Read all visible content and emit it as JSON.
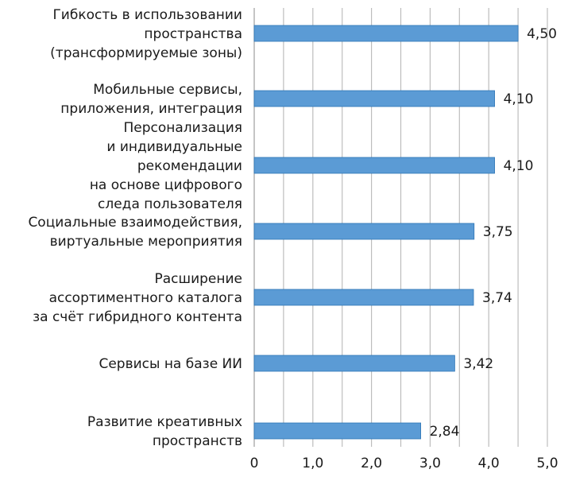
{
  "chart_data": {
    "type": "bar",
    "orientation": "horizontal",
    "title": "",
    "xlabel": "",
    "ylabel": "",
    "categories": [
      [
        "Гибкость в использовании",
        "пространства",
        "(трансформируемые зоны)"
      ],
      [
        "Мобильные сервисы,",
        "приложения, интеграция"
      ],
      [
        "Персонализация",
        "и индивидуальные",
        "рекомендации",
        "на основе цифрового",
        "следа пользователя"
      ],
      [
        "Социальные взаимодействия,",
        "виртуальные мероприятия"
      ],
      [
        "Расширение",
        "ассортиментного каталога",
        "за счёт гибридного контента"
      ],
      [
        "Сервисы на базе ИИ"
      ],
      [
        "Развитие креативных",
        "пространств"
      ]
    ],
    "values": [
      4.5,
      4.1,
      4.1,
      3.75,
      3.74,
      3.42,
      2.84
    ],
    "value_labels": [
      "4,50",
      "4,10",
      "4,10",
      "3,75",
      "3,74",
      "3,42",
      "2,84"
    ],
    "xlim": [
      0,
      5
    ],
    "x_ticks": [
      0,
      0.5,
      1,
      1.5,
      2,
      2.5,
      3,
      3.5,
      4,
      4.5,
      5
    ],
    "x_tick_labels": [
      "0",
      "",
      "1,0",
      "",
      "2,0",
      "",
      "3,0",
      "",
      "4,0",
      "",
      "5,0"
    ],
    "grid": true,
    "legend": "none",
    "colors": {
      "bar": "#5b9bd5",
      "bar_edge": "#2e75b6"
    }
  }
}
